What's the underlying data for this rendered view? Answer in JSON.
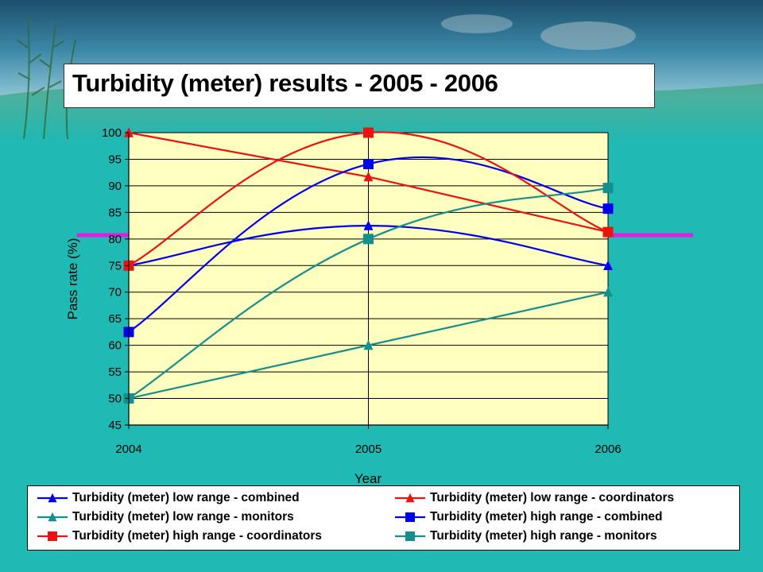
{
  "slide": {
    "title": "Turbidity (meter) results - 2005 - 2006"
  },
  "colors": {
    "background": "#1fbab4",
    "plot_area": "#ffffc0",
    "reference_line": "#e020e0",
    "blue": "#0000ee",
    "red": "#ee1111",
    "teal": "#14908c"
  },
  "chart_data": {
    "type": "line",
    "xlabel": "Year",
    "ylabel": "Pass rate (%)",
    "x": [
      "2004",
      "2005",
      "2006"
    ],
    "ylim": [
      45,
      100
    ],
    "yticks": [
      45,
      50,
      55,
      60,
      65,
      70,
      75,
      80,
      85,
      90,
      95,
      100
    ],
    "grid": true,
    "legend_position": "bottom",
    "series": [
      {
        "name": "Turbidity (meter) low range - combined",
        "values": [
          75,
          82.5,
          75
        ],
        "color": "#0000ee",
        "marker": "triangle",
        "smooth": true
      },
      {
        "name": "Turbidity (meter) low range - coordinators",
        "values": [
          100,
          91.7,
          81.3
        ],
        "color": "#ee1111",
        "marker": "triangle",
        "smooth": false
      },
      {
        "name": "Turbidity (meter) low range - monitors",
        "values": [
          50,
          60,
          70
        ],
        "color": "#14908c",
        "marker": "triangle",
        "smooth": false
      },
      {
        "name": "Turbidity (meter) high range - combined",
        "values": [
          62.5,
          94.1,
          85.7
        ],
        "color": "#0000ee",
        "marker": "square",
        "smooth": true
      },
      {
        "name": "Turbidity (meter) high range - coordinators",
        "values": [
          75,
          100,
          81.3
        ],
        "color": "#ee1111",
        "marker": "square",
        "smooth": true
      },
      {
        "name": "Turbidity (meter) high range - monitors",
        "values": [
          50,
          80,
          89.6
        ],
        "color": "#14908c",
        "marker": "square",
        "smooth": true
      }
    ],
    "reference_line": {
      "value": 80.8,
      "color": "#e020e0"
    }
  }
}
